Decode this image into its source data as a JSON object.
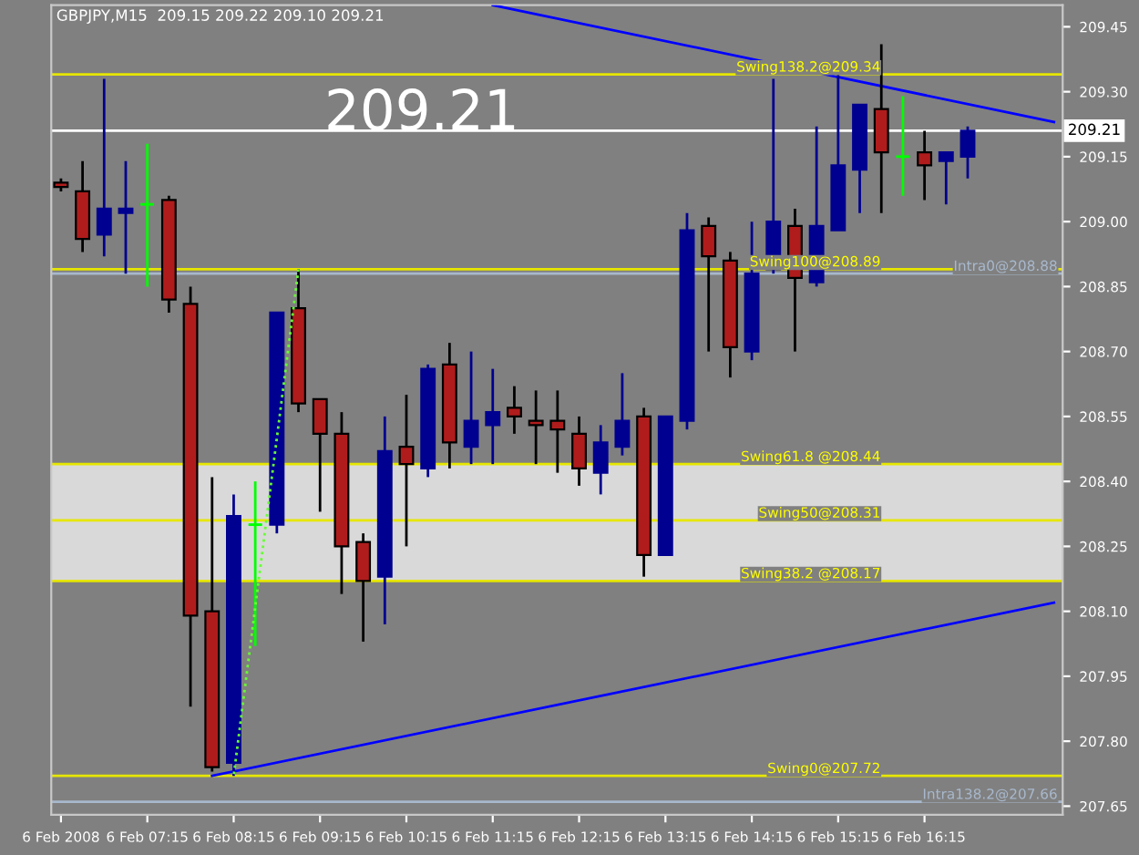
{
  "chart_data": {
    "type": "candlestick",
    "title": "GBPJPY,M15  209.15 209.22 209.10 209.21",
    "annotations": [
      "209.21"
    ],
    "categories": [
      "6 Feb 2008",
      null,
      null,
      null,
      "6 Feb 07:15",
      null,
      null,
      null,
      "6 Feb 08:15",
      null,
      null,
      null,
      "6 Feb 09:15",
      null,
      null,
      null,
      "6 Feb 10:15",
      null,
      null,
      null,
      "6 Feb 11:15",
      null,
      null,
      null,
      "6 Feb 12:15",
      null,
      null,
      null,
      "6 Feb 13:15",
      null,
      null,
      null,
      "6 Feb 14:15",
      null,
      null,
      null,
      "6 Feb 15:15",
      null,
      null,
      null,
      "6 Feb 16:15",
      null,
      null,
      null,
      null,
      null,
      null
    ],
    "ohlc": [
      [
        209.09,
        209.1,
        209.07,
        209.08
      ],
      [
        209.07,
        209.14,
        208.93,
        208.96
      ],
      [
        208.97,
        209.33,
        208.92,
        209.03
      ],
      [
        209.02,
        209.14,
        208.88,
        209.03
      ],
      [
        209.04,
        209.18,
        208.85,
        209.04
      ],
      [
        209.05,
        209.06,
        208.79,
        208.82
      ],
      [
        208.81,
        208.85,
        207.88,
        208.09
      ],
      [
        208.1,
        208.41,
        207.73,
        207.74
      ],
      [
        207.75,
        208.37,
        207.72,
        208.32
      ],
      [
        208.3,
        208.4,
        208.02,
        208.3
      ],
      [
        208.3,
        208.79,
        208.28,
        208.79
      ],
      [
        208.8,
        208.89,
        208.56,
        208.58
      ],
      [
        208.59,
        208.59,
        208.33,
        208.51
      ],
      [
        208.51,
        208.56,
        208.14,
        208.25
      ],
      [
        208.26,
        208.28,
        208.03,
        208.17
      ],
      [
        208.18,
        208.55,
        208.07,
        208.47
      ],
      [
        208.48,
        208.6,
        208.25,
        208.44
      ],
      [
        208.43,
        208.67,
        208.41,
        208.66
      ],
      [
        208.67,
        208.72,
        208.43,
        208.49
      ],
      [
        208.48,
        208.7,
        208.44,
        208.54
      ],
      [
        208.53,
        208.66,
        208.44,
        208.56
      ],
      [
        208.57,
        208.62,
        208.51,
        208.55
      ],
      [
        208.54,
        208.61,
        208.44,
        208.53
      ],
      [
        208.54,
        208.61,
        208.42,
        208.52
      ],
      [
        208.51,
        208.55,
        208.39,
        208.43
      ],
      [
        208.42,
        208.53,
        208.37,
        208.49
      ],
      [
        208.48,
        208.65,
        208.46,
        208.54
      ],
      [
        208.55,
        208.57,
        208.18,
        208.23
      ],
      [
        208.23,
        208.55,
        208.23,
        208.55
      ],
      [
        208.54,
        209.02,
        208.52,
        208.98
      ],
      [
        208.99,
        209.01,
        208.7,
        208.92
      ],
      [
        208.91,
        208.93,
        208.64,
        208.71
      ],
      [
        208.7,
        209.0,
        208.68,
        208.88
      ],
      [
        208.89,
        209.33,
        208.88,
        209.0
      ],
      [
        208.99,
        209.03,
        208.7,
        208.87
      ],
      [
        208.86,
        209.22,
        208.85,
        208.99
      ],
      [
        208.98,
        209.34,
        208.98,
        209.13
      ],
      [
        209.12,
        209.27,
        209.02,
        209.27
      ],
      [
        209.26,
        209.41,
        209.02,
        209.16
      ],
      [
        209.15,
        209.29,
        209.06,
        209.15
      ],
      [
        209.16,
        209.21,
        209.05,
        209.13
      ],
      [
        209.14,
        209.16,
        209.04,
        209.16
      ],
      [
        209.15,
        209.22,
        209.1,
        209.21
      ],
      null,
      null,
      null,
      null
    ],
    "colors": [
      "#b01c1c",
      "#b01c1c",
      "#000090",
      "#000090",
      "#00ff00",
      "#b01c1c",
      "#b01c1c",
      "#b01c1c",
      "#000090",
      "#00ff00",
      "#000090",
      "#b01c1c",
      "#b01c1c",
      "#b01c1c",
      "#b01c1c",
      "#000090",
      "#b01c1c",
      "#000090",
      "#b01c1c",
      "#000090",
      "#000090",
      "#b01c1c",
      "#b01c1c",
      "#b01c1c",
      "#b01c1c",
      "#000090",
      "#000090",
      "#b01c1c",
      "#000090",
      "#000090",
      "#b01c1c",
      "#b01c1c",
      "#000090",
      "#000090",
      "#b01c1c",
      "#000090",
      "#000090",
      "#000090",
      "#b01c1c",
      "#00ff00",
      "#b01c1c",
      "#000090",
      "#000090",
      null,
      null,
      null,
      null
    ],
    "series": [
      {
        "type": "line",
        "color": "#0000ff",
        "values": [
          null,
          null,
          null,
          null,
          null,
          null,
          null,
          null,
          null,
          null,
          null,
          null,
          null,
          null,
          null,
          null,
          null,
          null,
          null,
          null,
          209.5,
          null,
          null,
          null,
          null,
          null,
          null,
          null,
          null,
          null,
          null,
          null,
          null,
          null,
          null,
          null,
          null,
          null,
          null,
          null,
          null,
          null,
          null,
          null,
          null,
          null,
          209.23
        ]
      },
      {
        "type": "line",
        "color": "#0000ff",
        "values": [
          null,
          null,
          null,
          null,
          null,
          null,
          null,
          207.72,
          null,
          null,
          null,
          null,
          null,
          null,
          null,
          null,
          null,
          null,
          null,
          null,
          null,
          null,
          null,
          null,
          null,
          null,
          null,
          null,
          null,
          null,
          null,
          null,
          null,
          null,
          null,
          null,
          null,
          null,
          null,
          null,
          null,
          null,
          null,
          null,
          null,
          null,
          208.12
        ]
      },
      {
        "type": "line",
        "color": "#66ff33",
        "line_style": "dotted",
        "values": [
          null,
          null,
          null,
          null,
          null,
          null,
          null,
          null,
          207.72,
          null,
          null,
          208.89,
          null,
          null,
          null,
          null,
          null,
          null,
          null,
          null,
          null,
          null,
          null,
          null,
          null,
          null,
          null,
          null,
          null,
          null,
          null,
          null,
          null,
          null,
          null,
          null,
          null,
          null,
          null,
          null,
          null,
          null,
          null,
          null,
          null,
          null,
          null
        ]
      }
    ],
    "bands": [
      {
        "axis": "y",
        "from": 208.17,
        "to": 208.44,
        "color": "#d9d9d9"
      }
    ],
    "ref_lines": [
      {
        "axis": "y",
        "value": 209.34,
        "label": "Swing138.2@209.34",
        "color": "#e6e600"
      },
      {
        "axis": "y",
        "value": 209.21,
        "label": "209.21",
        "color": "#ffffff"
      },
      {
        "axis": "y",
        "value": 208.89,
        "label": "Swing100@208.89",
        "color": "#e6e600"
      },
      {
        "axis": "y",
        "value": 208.88,
        "label": "Intra0@208.88",
        "color": "#a8b8cc"
      },
      {
        "axis": "y",
        "value": 208.44,
        "label": "Swing61.8 @208.44",
        "color": "#e6e600"
      },
      {
        "axis": "y",
        "value": 208.31,
        "label": "Swing50@208.31",
        "color": "#e6e600"
      },
      {
        "axis": "y",
        "value": 208.17,
        "label": "Swing38.2 @208.17",
        "color": "#e6e600"
      },
      {
        "axis": "y",
        "value": 207.72,
        "label": "Swing0@207.72",
        "color": "#e6e600"
      },
      {
        "axis": "y",
        "value": 207.66,
        "label": "Intra138.2@207.66",
        "color": "#a8b8cc"
      }
    ],
    "ylim": [
      207.63,
      209.5
    ],
    "yticks": [
      {
        "value": 209.45,
        "label": "209.45"
      },
      {
        "value": 209.3,
        "label": "209.30"
      },
      {
        "value": 209.15,
        "label": "209.15"
      },
      {
        "value": 209.0,
        "label": "209.00"
      },
      {
        "value": 208.85,
        "label": "208.85"
      },
      {
        "value": 208.7,
        "label": "208.70"
      },
      {
        "value": 208.55,
        "label": "208.55"
      },
      {
        "value": 208.4,
        "label": "208.40"
      },
      {
        "value": 208.25,
        "label": "208.25"
      },
      {
        "value": 208.1,
        "label": "208.10"
      },
      {
        "value": 207.95,
        "label": "207.95"
      },
      {
        "value": 207.8,
        "label": "207.80"
      },
      {
        "value": 207.65,
        "label": "207.65"
      }
    ],
    "grid": false,
    "legend": false
  }
}
